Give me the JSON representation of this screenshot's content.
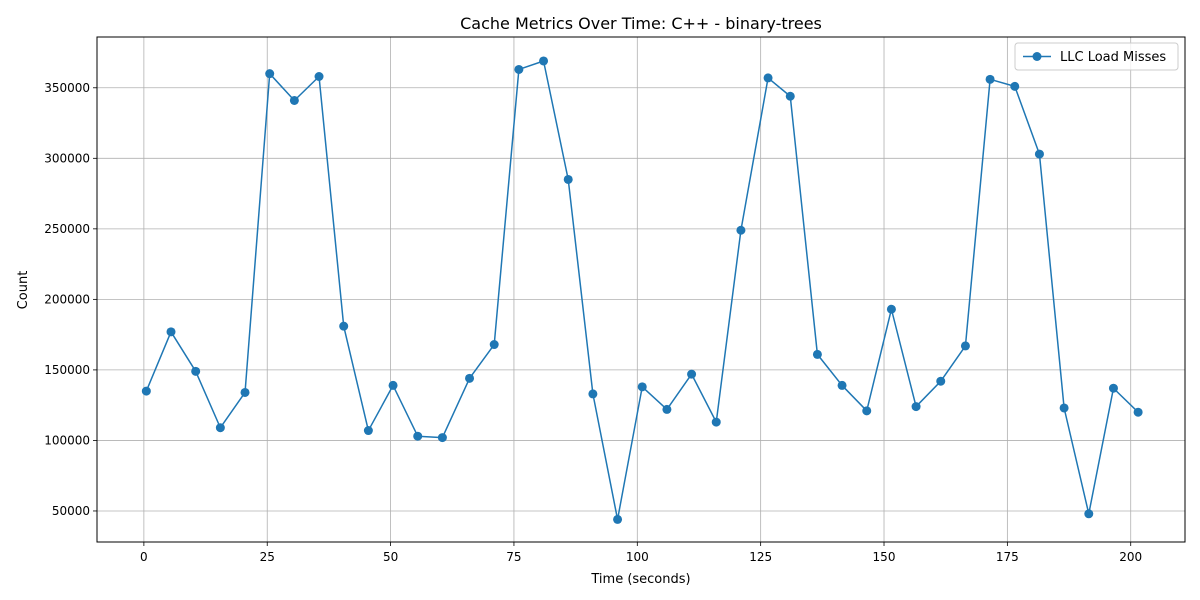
{
  "chart_data": {
    "type": "line",
    "title": "Cache Metrics Over Time: C++ - binary-trees",
    "xlabel": "Time (seconds)",
    "ylabel": "Count",
    "xlim": [
      -9.5,
      211
    ],
    "ylim": [
      28000,
      386000
    ],
    "x_ticks": [
      0,
      25,
      50,
      75,
      100,
      125,
      150,
      175,
      200
    ],
    "y_ticks": [
      50000,
      100000,
      150000,
      200000,
      250000,
      300000,
      350000
    ],
    "grid": true,
    "legend_position": "top-right",
    "series": [
      {
        "name": "LLC Load Misses",
        "color": "#1f77b4",
        "marker": "circle",
        "x": [
          0.5,
          5.5,
          10.5,
          15.5,
          20.5,
          25.5,
          30.5,
          35.5,
          40.5,
          45.5,
          50.5,
          55.5,
          60.5,
          66,
          71,
          76,
          81,
          86,
          91,
          96,
          101,
          106,
          111,
          116,
          121,
          126.5,
          131,
          136.5,
          141.5,
          146.5,
          151.5,
          156.5,
          161.5,
          166.5,
          171.5,
          176.5,
          181.5,
          186.5,
          191.5,
          196.5,
          201.5
        ],
        "y": [
          135000,
          177000,
          149000,
          109000,
          134000,
          360000,
          341000,
          358000,
          181000,
          107000,
          139000,
          103000,
          102000,
          144000,
          168000,
          363000,
          369000,
          285000,
          133000,
          44000,
          138000,
          122000,
          147000,
          113000,
          249000,
          357000,
          344000,
          161000,
          139000,
          121000,
          193000,
          124000,
          142000,
          167000,
          356000,
          351000,
          303000,
          123000,
          48000,
          137000,
          120000
        ]
      }
    ]
  }
}
